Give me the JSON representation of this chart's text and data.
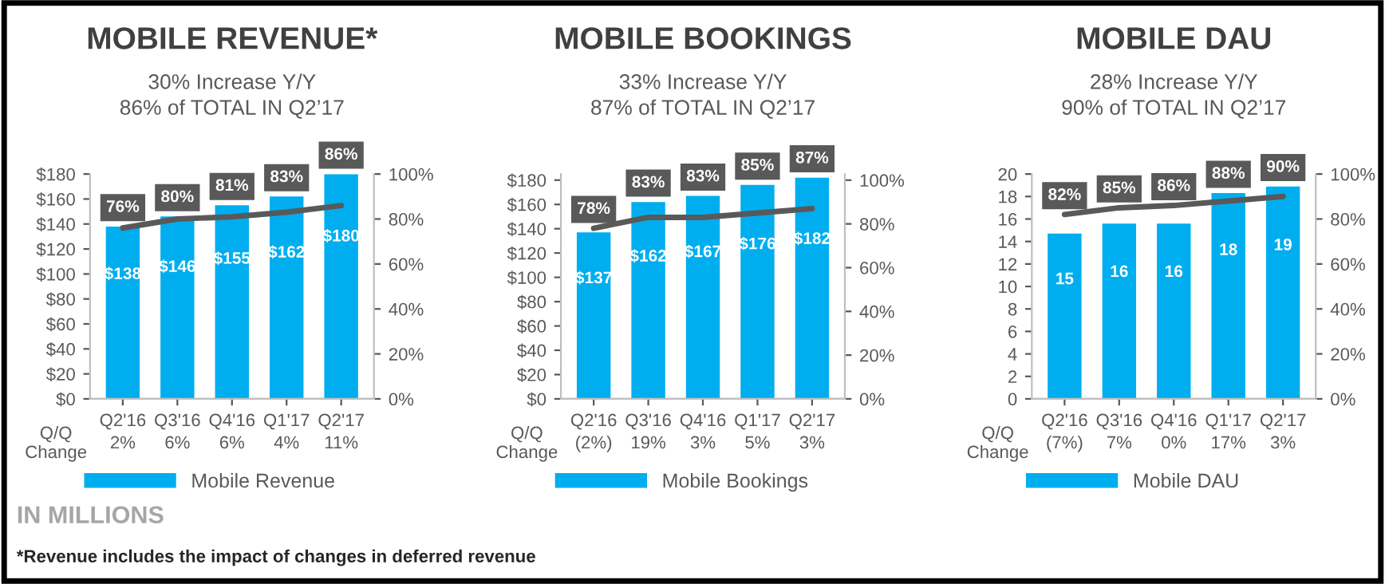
{
  "chart_data": [
    {
      "type": "bar",
      "title": "MOBILE REVENUE*",
      "subtitle": "30% Increase Y/Y\n86% of TOTAL IN Q2’17",
      "categories": [
        "Q2'16",
        "Q3'16",
        "Q4'16",
        "Q1'17",
        "Q2'17"
      ],
      "series": [
        {
          "name": "Mobile Revenue",
          "color": "#00aeef",
          "values": [
            138,
            146,
            155,
            162,
            180
          ],
          "value_labels": [
            "$138",
            "$146",
            "$155",
            "$162",
            "$180"
          ]
        },
        {
          "type": "line",
          "axis": "y2",
          "color": "#595959",
          "values": [
            76,
            80,
            81,
            83,
            86
          ],
          "value_labels": [
            "76%",
            "80%",
            "81%",
            "83%",
            "86%"
          ]
        }
      ],
      "ylim": [
        0,
        180
      ],
      "yticks": [
        {
          "value": 0,
          "label": "$0"
        },
        {
          "value": 20,
          "label": "$20"
        },
        {
          "value": 40,
          "label": "$40"
        },
        {
          "value": 60,
          "label": "$60"
        },
        {
          "value": 80,
          "label": "$80"
        },
        {
          "value": 100,
          "label": "$100"
        },
        {
          "value": 120,
          "label": "$120"
        },
        {
          "value": 140,
          "label": "$140"
        },
        {
          "value": 160,
          "label": "$160"
        },
        {
          "value": 180,
          "label": "$180"
        }
      ],
      "y2lim": [
        0,
        100
      ],
      "y2ticks": [
        {
          "value": 0,
          "label": "0%"
        },
        {
          "value": 20,
          "label": "20%"
        },
        {
          "value": 40,
          "label": "40%"
        },
        {
          "value": 60,
          "label": "60%"
        },
        {
          "value": 80,
          "label": "80%"
        },
        {
          "value": 100,
          "label": "100%"
        }
      ],
      "legend": "bottom",
      "grid": false,
      "annotations": [
        "Q/Q\nChange",
        "2%",
        "6%",
        "6%",
        "4%",
        "11%",
        "IN MILLIONS",
        "*Revenue includes the impact of changes in deferred revenue"
      ]
    },
    {
      "type": "bar",
      "title": "MOBILE BOOKINGS",
      "subtitle": "33% Increase Y/Y\n87% of TOTAL IN Q2’17",
      "categories": [
        "Q2'16",
        "Q3'16",
        "Q4'16",
        "Q1'17",
        "Q2'17"
      ],
      "series": [
        {
          "name": "Mobile Bookings",
          "color": "#00aeef",
          "values": [
            137,
            162,
            167,
            176,
            182
          ],
          "value_labels": [
            "$137",
            "$162",
            "$167",
            "$176",
            "$182"
          ]
        },
        {
          "type": "line",
          "axis": "y2",
          "color": "#595959",
          "values": [
            78,
            83,
            83,
            85,
            87
          ],
          "value_labels": [
            "78%",
            "83%",
            "83%",
            "85%",
            "87%"
          ]
        }
      ],
      "ylim": [
        0,
        185
      ],
      "yticks": [
        {
          "value": 0,
          "label": "$0"
        },
        {
          "value": 20,
          "label": "$20"
        },
        {
          "value": 40,
          "label": "$40"
        },
        {
          "value": 60,
          "label": "$60"
        },
        {
          "value": 80,
          "label": "$80"
        },
        {
          "value": 100,
          "label": "$100"
        },
        {
          "value": 120,
          "label": "$120"
        },
        {
          "value": 140,
          "label": "$140"
        },
        {
          "value": 160,
          "label": "$160"
        },
        {
          "value": 180,
          "label": "$180"
        }
      ],
      "y2lim": [
        0,
        102.8
      ],
      "y2ticks": [
        {
          "value": 0,
          "label": "0%"
        },
        {
          "value": 20,
          "label": "20%"
        },
        {
          "value": 40,
          "label": "40%"
        },
        {
          "value": 60,
          "label": "60%"
        },
        {
          "value": 80,
          "label": "80%"
        },
        {
          "value": 100,
          "label": "100%"
        }
      ],
      "legend": "bottom",
      "grid": false,
      "annotations": [
        "Q/Q\nChange",
        "(2%)",
        "19%",
        "3%",
        "5%",
        "3%"
      ]
    },
    {
      "type": "bar",
      "title": "MOBILE DAU",
      "subtitle": "28% Increase Y/Y\n90% of TOTAL IN Q2’17",
      "categories": [
        "Q2'16",
        "Q3'16",
        "Q4'16",
        "Q1'17",
        "Q2'17"
      ],
      "series": [
        {
          "name": "Mobile DAU",
          "color": "#00aeef",
          "values": [
            14.7,
            15.6,
            15.6,
            18.3,
            18.9
          ],
          "value_labels": [
            "15",
            "16",
            "16",
            "18",
            "19"
          ]
        },
        {
          "type": "line",
          "axis": "y2",
          "color": "#595959",
          "values": [
            82,
            85,
            86,
            88,
            90
          ],
          "value_labels": [
            "82%",
            "85%",
            "86%",
            "88%",
            "90%"
          ]
        }
      ],
      "ylim": [
        0,
        20
      ],
      "yticks": [
        0,
        2,
        4,
        6,
        8,
        10,
        12,
        14,
        16,
        18,
        20
      ],
      "y2lim": [
        0,
        100
      ],
      "y2ticks": [
        {
          "value": 0,
          "label": "0%"
        },
        {
          "value": 20,
          "label": "20%"
        },
        {
          "value": 40,
          "label": "40%"
        },
        {
          "value": 60,
          "label": "60%"
        },
        {
          "value": 80,
          "label": "80%"
        },
        {
          "value": 100,
          "label": "100%"
        }
      ],
      "legend": "bottom",
      "grid": false,
      "annotations": [
        "Q/Q\nChange",
        "(7%)",
        "7%",
        "0%",
        "17%",
        "3%"
      ]
    }
  ]
}
